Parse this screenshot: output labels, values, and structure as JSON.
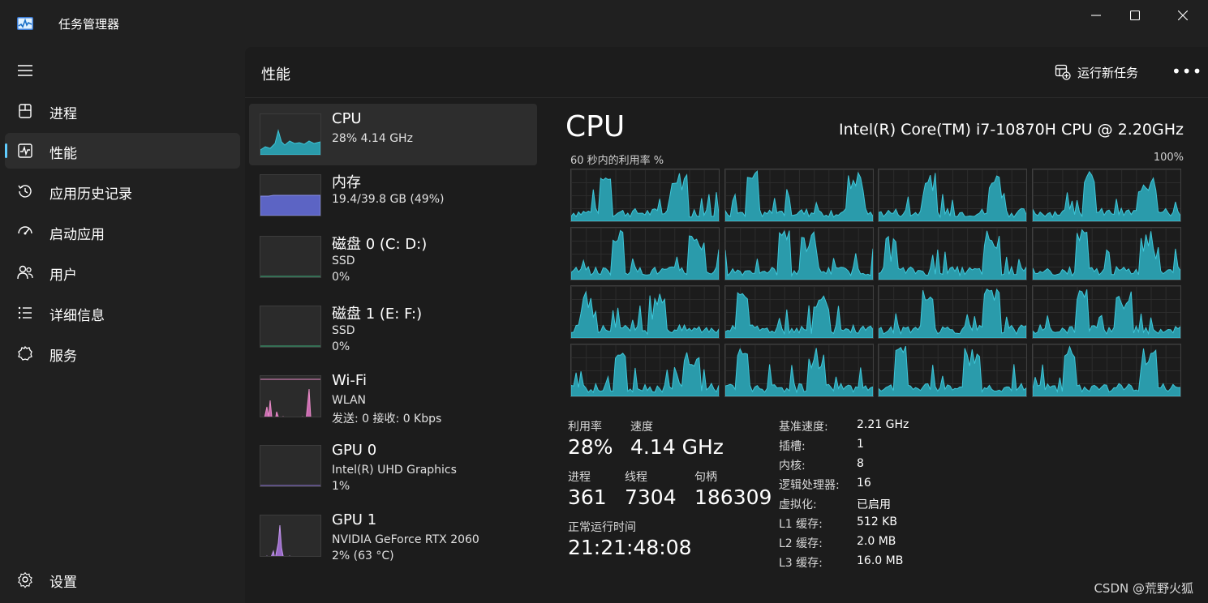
{
  "window": {
    "title": "任务管理器",
    "icon": "task-manager-icon"
  },
  "sidebar": {
    "items": [
      {
        "label": "进程",
        "icon": "processes-icon"
      },
      {
        "label": "性能",
        "icon": "performance-icon",
        "active": true
      },
      {
        "label": "应用历史记录",
        "icon": "history-icon"
      },
      {
        "label": "启动应用",
        "icon": "startup-icon"
      },
      {
        "label": "用户",
        "icon": "users-icon"
      },
      {
        "label": "详细信息",
        "icon": "details-icon"
      },
      {
        "label": "服务",
        "icon": "services-icon"
      }
    ],
    "settings_label": "设置"
  },
  "header": {
    "title": "性能",
    "run_task_label": "运行新任务",
    "more_label": "•••"
  },
  "perf_list": [
    {
      "title": "CPU",
      "line1": "28%  4.14 GHz",
      "line2": "",
      "color": "#2fb5c6",
      "level": 0.28
    },
    {
      "title": "内存",
      "line1": "19.4/39.8 GB (49%)",
      "line2": "",
      "color": "#6b73d6",
      "level": 0.49
    },
    {
      "title": "磁盘 0 (C: D:)",
      "line1": "SSD",
      "line2": "0%",
      "color": "#3fb37f",
      "level": 0.0
    },
    {
      "title": "磁盘 1 (E: F:)",
      "line1": "SSD",
      "line2": "0%",
      "color": "#3fb37f",
      "level": 0.0
    },
    {
      "title": "Wi-Fi",
      "line1": "WLAN",
      "line2": "发送: 0 接收: 0 Kbps",
      "color": "#e88bc7",
      "level": 0.0
    },
    {
      "title": "GPU 0",
      "line1": "Intel(R) UHD Graphics",
      "line2": "1%",
      "color": "#8f77d8",
      "level": 0.01
    },
    {
      "title": "GPU 1",
      "line1": "NVIDIA GeForce RTX 2060",
      "line2": "2% (63 °C)",
      "color": "#b28ae0",
      "level": 0.02
    }
  ],
  "detail": {
    "title": "CPU",
    "model": "Intel(R) Core(TM) i7-10870H CPU @ 2.20GHz",
    "graph_label": "60 秒内的利用率 %",
    "graph_max": "100%",
    "stats": {
      "util_label": "利用率",
      "util_value": "28%",
      "speed_label": "速度",
      "speed_value": "4.14 GHz",
      "proc_label": "进程",
      "proc_value": "361",
      "thread_label": "线程",
      "thread_value": "7304",
      "handle_label": "句柄",
      "handle_value": "186309",
      "uptime_label": "正常运行时间",
      "uptime_value": "21:21:48:08"
    },
    "specs": [
      {
        "key": "基准速度:",
        "value": "2.21 GHz"
      },
      {
        "key": "插槽:",
        "value": "1"
      },
      {
        "key": "内核:",
        "value": "8"
      },
      {
        "key": "逻辑处理器:",
        "value": "16"
      },
      {
        "key": "虚拟化:",
        "value": "已启用"
      },
      {
        "key": "L1 缓存:",
        "value": "512 KB"
      },
      {
        "key": "L2 缓存:",
        "value": "2.0 MB"
      },
      {
        "key": "L3 缓存:",
        "value": "16.0 MB"
      }
    ]
  },
  "colors": {
    "cpu_fill": "#2a9bab",
    "cpu_line": "#3ec6d8",
    "accent": "#60cdff"
  },
  "watermark": "CSDN @荒野火狐"
}
